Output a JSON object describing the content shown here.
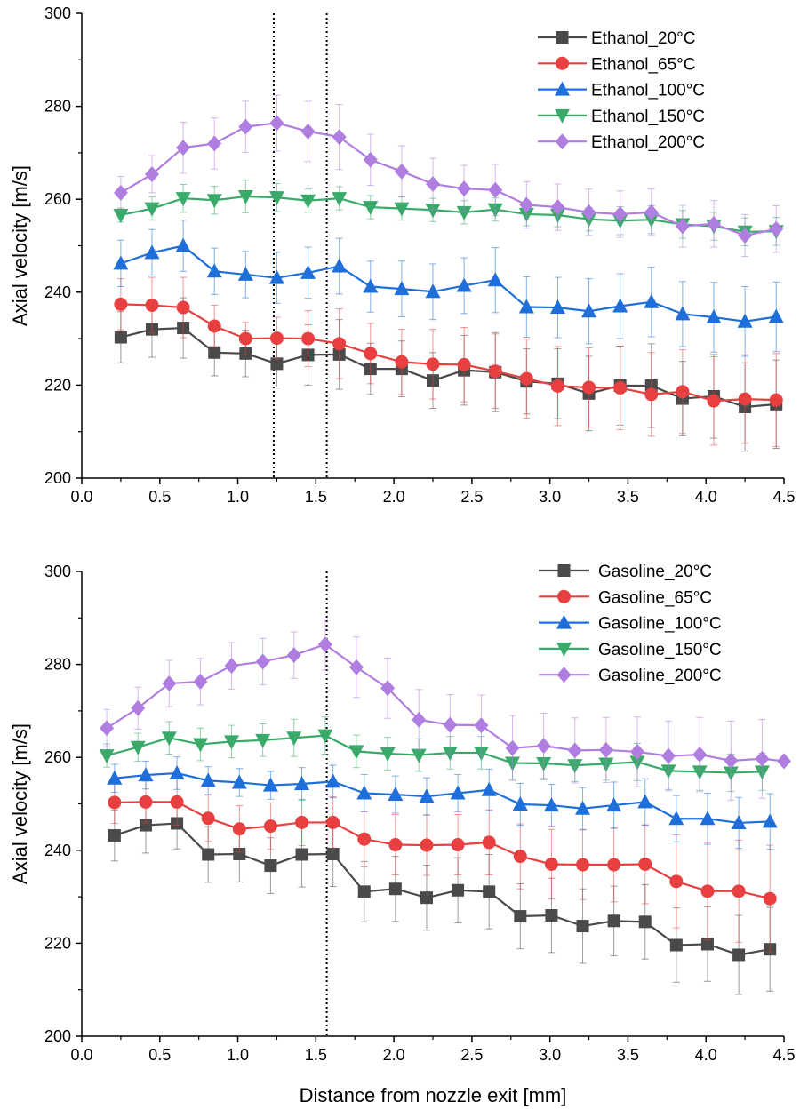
{
  "figure": {
    "xlabel": "Distance from nozzle exit [mm]"
  },
  "chart_data": [
    {
      "type": "line",
      "ylabel": "Axial velocity [m/s]",
      "xlim": [
        0,
        4.5
      ],
      "ylim": [
        200,
        300
      ],
      "xticks": [
        "0.0",
        "0.5",
        "1.0",
        "1.5",
        "2.0",
        "2.5",
        "3.0",
        "3.5",
        "4.0",
        "4.5"
      ],
      "yticks": [
        "200",
        "220",
        "240",
        "260",
        "280",
        "300"
      ],
      "grid": false,
      "legend_position": "top-right",
      "reference_lines_x": [
        1.23,
        1.57
      ],
      "series": [
        {
          "name": "Ethanol_20°C",
          "marker": "square",
          "color": "#4a4a4a",
          "x": [
            0.25,
            0.45,
            0.65,
            0.85,
            1.05,
            1.25,
            1.45,
            1.65,
            1.85,
            2.05,
            2.25,
            2.45,
            2.65,
            2.85,
            3.05,
            3.25,
            3.45,
            3.65,
            3.85,
            4.05,
            4.25,
            4.45
          ],
          "y": [
            230.3,
            232.0,
            232.3,
            227.0,
            226.8,
            224.6,
            226.5,
            226.6,
            223.5,
            223.5,
            221.0,
            223.2,
            222.8,
            220.8,
            220.3,
            218.2,
            219.9,
            219.9,
            217.1,
            217.6,
            215.3,
            215.9
          ],
          "err": [
            5.5,
            6.0,
            6.5,
            5.0,
            5.0,
            5.0,
            6.5,
            7.5,
            5.5,
            6.0,
            6.0,
            7.5,
            8.5,
            7.0,
            7.5,
            8.0,
            8.5,
            9.0,
            8.0,
            9.0,
            9.5,
            9.5
          ]
        },
        {
          "name": "Ethanol_65°C",
          "marker": "circle",
          "color": "#e84040",
          "x": [
            0.25,
            0.45,
            0.65,
            0.85,
            1.05,
            1.25,
            1.45,
            1.65,
            1.85,
            2.05,
            2.25,
            2.45,
            2.65,
            2.85,
            3.05,
            3.25,
            3.45,
            3.65,
            3.85,
            4.05,
            4.25,
            4.45
          ],
          "y": [
            237.4,
            237.2,
            236.7,
            232.7,
            230.0,
            230.1,
            230.0,
            228.9,
            226.8,
            225.0,
            224.5,
            224.4,
            223.0,
            221.4,
            219.8,
            219.5,
            219.4,
            218.0,
            218.6,
            216.6,
            217.0,
            216.8
          ],
          "err": [
            5.5,
            6.0,
            6.5,
            4.5,
            3.5,
            4.5,
            6.0,
            7.5,
            6.5,
            7.0,
            7.5,
            8.0,
            8.0,
            8.5,
            8.5,
            8.5,
            9.0,
            9.0,
            9.0,
            9.5,
            9.5,
            10.0
          ]
        },
        {
          "name": "Ethanol_100°C",
          "marker": "triangle-up",
          "color": "#1e6fd9",
          "x": [
            0.25,
            0.45,
            0.65,
            0.85,
            1.05,
            1.25,
            1.45,
            1.65,
            1.85,
            2.05,
            2.25,
            2.45,
            2.65,
            2.85,
            3.05,
            3.25,
            3.45,
            3.65,
            3.85,
            4.05,
            4.25,
            4.45
          ],
          "y": [
            246.2,
            248.5,
            250.0,
            244.5,
            243.8,
            243.1,
            244.2,
            245.6,
            241.2,
            240.7,
            240.1,
            241.4,
            242.6,
            236.8,
            236.7,
            235.9,
            237.0,
            237.9,
            235.3,
            234.6,
            233.7,
            234.7
          ],
          "err": [
            5.0,
            5.0,
            5.5,
            5.0,
            5.0,
            5.5,
            5.5,
            6.0,
            5.5,
            6.0,
            6.0,
            6.0,
            7.0,
            6.5,
            6.5,
            7.0,
            7.0,
            7.5,
            7.0,
            7.5,
            7.5,
            7.5
          ]
        },
        {
          "name": "Ethanol_150°C",
          "marker": "triangle-down",
          "color": "#3aaa6a",
          "x": [
            0.25,
            0.45,
            0.65,
            0.85,
            1.05,
            1.25,
            1.45,
            1.65,
            1.85,
            2.05,
            2.25,
            2.45,
            2.65,
            2.85,
            3.05,
            3.25,
            3.45,
            3.65,
            3.85,
            4.05,
            4.25,
            4.45
          ],
          "y": [
            256.6,
            258.0,
            260.2,
            259.8,
            260.6,
            260.4,
            259.7,
            260.2,
            258.3,
            258.0,
            257.7,
            257.2,
            257.8,
            256.8,
            256.6,
            255.7,
            255.4,
            255.6,
            254.6,
            254.2,
            253.0,
            253.1
          ],
          "err": [
            1.5,
            2.5,
            3.0,
            3.0,
            3.5,
            3.0,
            2.5,
            2.5,
            2.5,
            2.5,
            2.5,
            2.5,
            2.5,
            2.5,
            2.5,
            2.5,
            3.0,
            3.0,
            3.0,
            3.0,
            3.0,
            3.0
          ]
        },
        {
          "name": "Ethanol_200°C",
          "marker": "diamond",
          "color": "#b07ee0",
          "x": [
            0.25,
            0.45,
            0.65,
            0.85,
            1.05,
            1.25,
            1.45,
            1.65,
            1.85,
            2.05,
            2.25,
            2.45,
            2.65,
            2.85,
            3.05,
            3.25,
            3.45,
            3.65,
            3.85,
            4.05,
            4.25,
            4.45
          ],
          "y": [
            261.4,
            265.4,
            271.1,
            272.0,
            275.6,
            276.4,
            274.6,
            273.4,
            268.5,
            266.0,
            263.3,
            262.3,
            262.0,
            258.8,
            258.3,
            257.2,
            256.8,
            257.2,
            254.2,
            254.7,
            252.2,
            253.6
          ],
          "err": [
            3.5,
            4.0,
            5.5,
            5.5,
            5.5,
            6.0,
            6.5,
            7.0,
            5.5,
            5.5,
            5.5,
            5.0,
            5.5,
            5.0,
            5.0,
            5.0,
            5.0,
            5.0,
            4.5,
            5.0,
            4.5,
            5.0
          ]
        }
      ]
    },
    {
      "type": "line",
      "ylabel": "Axial velocity [m/s]",
      "xlim": [
        0,
        4.5
      ],
      "ylim": [
        200,
        300
      ],
      "xticks": [
        "0.0",
        "0.5",
        "1.0",
        "1.5",
        "2.0",
        "2.5",
        "3.0",
        "3.5",
        "4.0",
        "4.5"
      ],
      "yticks": [
        "200",
        "220",
        "240",
        "260",
        "280",
        "300"
      ],
      "grid": false,
      "legend_position": "top-right",
      "reference_lines_x": [
        1.57
      ],
      "series": [
        {
          "name": "Gasoline_20°C",
          "marker": "square",
          "color": "#4a4a4a",
          "x": [
            0.21,
            0.41,
            0.61,
            0.81,
            1.01,
            1.21,
            1.41,
            1.61,
            1.81,
            2.01,
            2.21,
            2.41,
            2.61,
            2.81,
            3.01,
            3.21,
            3.41,
            3.61,
            3.81,
            4.01,
            4.21,
            4.41
          ],
          "y": [
            243.2,
            245.4,
            245.8,
            239.1,
            239.2,
            236.7,
            239.1,
            239.2,
            231.1,
            231.7,
            229.8,
            231.4,
            231.1,
            225.8,
            226.0,
            223.7,
            224.8,
            224.6,
            219.6,
            219.8,
            217.5,
            218.7
          ],
          "err": [
            5.5,
            6.0,
            5.5,
            6.0,
            6.0,
            6.0,
            7.0,
            7.0,
            6.5,
            7.0,
            7.0,
            7.0,
            8.0,
            7.0,
            8.0,
            8.0,
            7.5,
            8.0,
            8.0,
            8.0,
            8.5,
            9.0
          ]
        },
        {
          "name": "Gasoline_65°C",
          "marker": "circle",
          "color": "#e84040",
          "x": [
            0.21,
            0.41,
            0.61,
            0.81,
            1.01,
            1.21,
            1.41,
            1.61,
            1.81,
            2.01,
            2.21,
            2.41,
            2.61,
            2.81,
            3.01,
            3.21,
            3.41,
            3.61,
            3.81,
            4.01,
            4.21,
            4.41
          ],
          "y": [
            250.3,
            250.4,
            250.4,
            246.9,
            244.6,
            245.2,
            246.0,
            246.0,
            242.4,
            241.2,
            241.1,
            241.2,
            241.7,
            238.7,
            237.0,
            236.9,
            236.9,
            237.0,
            233.3,
            231.2,
            231.2,
            229.6
          ],
          "err": [
            4.5,
            4.5,
            5.0,
            5.0,
            5.0,
            5.0,
            5.0,
            5.5,
            6.0,
            6.5,
            6.5,
            6.5,
            7.0,
            7.0,
            7.5,
            7.5,
            8.0,
            8.5,
            10.0,
            10.5,
            11.0,
            11.5
          ]
        },
        {
          "name": "Gasoline_100°C",
          "marker": "triangle-up",
          "color": "#1e6fd9",
          "x": [
            0.21,
            0.41,
            0.61,
            0.81,
            1.01,
            1.21,
            1.41,
            1.61,
            1.81,
            2.01,
            2.21,
            2.41,
            2.61,
            2.81,
            3.01,
            3.21,
            3.41,
            3.61,
            3.81,
            4.01,
            4.21,
            4.41
          ],
          "y": [
            255.5,
            256.2,
            256.6,
            255.0,
            254.6,
            254.0,
            254.3,
            254.8,
            252.3,
            252.0,
            251.6,
            252.3,
            253.0,
            249.9,
            249.7,
            249.0,
            249.7,
            250.4,
            246.8,
            246.8,
            245.9,
            246.2
          ],
          "err": [
            3.0,
            3.0,
            3.5,
            3.0,
            3.0,
            3.0,
            3.5,
            3.5,
            4.0,
            4.0,
            4.0,
            4.0,
            4.5,
            4.5,
            4.5,
            4.5,
            5.0,
            5.0,
            5.0,
            5.5,
            5.5,
            6.0
          ]
        },
        {
          "name": "Gasoline_150°C",
          "marker": "triangle-down",
          "color": "#3aaa6a",
          "x": [
            0.16,
            0.36,
            0.56,
            0.76,
            0.96,
            1.16,
            1.36,
            1.56,
            1.76,
            1.96,
            2.16,
            2.36,
            2.56,
            2.76,
            2.96,
            3.16,
            3.36,
            3.56,
            3.76,
            3.96,
            4.16,
            4.36
          ],
          "y": [
            260.4,
            262.2,
            264.2,
            262.8,
            263.4,
            263.7,
            264.2,
            264.7,
            261.3,
            260.8,
            260.5,
            261.0,
            261.0,
            258.8,
            258.7,
            258.3,
            258.6,
            259.0,
            257.1,
            256.9,
            256.7,
            256.9
          ],
          "err": [
            2.5,
            3.0,
            3.5,
            3.5,
            3.5,
            3.5,
            4.0,
            4.0,
            3.5,
            3.5,
            3.5,
            3.5,
            3.5,
            3.5,
            3.5,
            3.5,
            3.5,
            4.0,
            4.0,
            4.0,
            4.0,
            4.0
          ]
        },
        {
          "name": "Gasoline_200°C",
          "marker": "diamond",
          "color": "#b07ee0",
          "x": [
            0.16,
            0.36,
            0.56,
            0.76,
            0.96,
            1.16,
            1.36,
            1.56,
            1.76,
            1.96,
            2.16,
            2.36,
            2.56,
            2.76,
            2.96,
            3.16,
            3.36,
            3.56,
            3.76,
            3.96,
            4.16,
            4.36,
            4.5
          ],
          "y": [
            266.3,
            270.6,
            275.9,
            276.3,
            279.7,
            280.6,
            282.0,
            284.3,
            279.4,
            274.9,
            268.1,
            267.0,
            266.9,
            262.0,
            262.5,
            261.5,
            261.6,
            261.2,
            260.3,
            260.6,
            259.3,
            259.7,
            259.2
          ],
          "err": [
            4.0,
            4.5,
            5.0,
            5.0,
            5.0,
            5.0,
            5.0,
            5.5,
            6.5,
            6.5,
            6.5,
            6.5,
            6.5,
            7.0,
            7.0,
            7.0,
            7.0,
            7.5,
            7.5,
            8.0,
            8.5,
            8.5,
            0
          ]
        }
      ]
    }
  ]
}
